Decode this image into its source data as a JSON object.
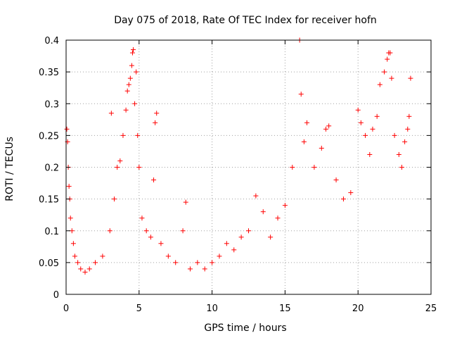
{
  "chart_data": {
    "type": "scatter",
    "title": "Day 075 of 2018, Rate Of TEC Index for receiver hofn",
    "xlabel": "GPS time / hours",
    "ylabel": "ROTI / TECUs",
    "xlim": [
      0,
      25
    ],
    "ylim": [
      0,
      0.4
    ],
    "xticks": [
      0,
      5,
      10,
      15,
      20,
      25
    ],
    "xtick_labels": [
      "0",
      "5",
      "10",
      "15",
      "20",
      "25"
    ],
    "yticks": [
      0,
      0.05,
      0.1,
      0.15,
      0.2,
      0.25,
      0.3,
      0.35,
      0.4
    ],
    "ytick_labels": [
      "0",
      "0.05",
      "0.1",
      "0.15",
      "0.2",
      "0.25",
      "0.3",
      "0.35",
      "0.4"
    ],
    "grid": true,
    "marker": "+",
    "color": "#ff0000",
    "series": [
      {
        "name": "ROTI",
        "x": [
          0.05,
          0.1,
          0.15,
          0.2,
          0.25,
          0.3,
          0.4,
          0.5,
          0.6,
          0.8,
          1.0,
          1.3,
          1.6,
          2.0,
          2.5,
          3.0,
          3.1,
          3.3,
          3.5,
          3.7,
          3.9,
          4.1,
          4.2,
          4.3,
          4.4,
          4.5,
          4.55,
          4.6,
          4.7,
          4.8,
          4.9,
          5.0,
          5.2,
          5.5,
          5.8,
          6.0,
          6.1,
          6.2,
          6.5,
          7.0,
          7.5,
          8.0,
          8.2,
          8.5,
          9.0,
          9.5,
          10.0,
          10.5,
          11.0,
          11.5,
          12.0,
          12.5,
          13.0,
          13.5,
          14.0,
          14.5,
          15.0,
          15.5,
          16.0,
          16.1,
          16.3,
          16.5,
          17.0,
          17.5,
          17.8,
          18.0,
          18.5,
          19.0,
          19.5,
          20.0,
          20.2,
          20.5,
          20.8,
          21.0,
          21.3,
          21.5,
          21.8,
          22.0,
          22.1,
          22.2,
          22.3,
          22.5,
          22.8,
          23.0,
          23.2,
          23.4,
          23.5,
          23.6
        ],
        "y": [
          0.26,
          0.24,
          0.2,
          0.17,
          0.15,
          0.12,
          0.1,
          0.08,
          0.06,
          0.05,
          0.04,
          0.035,
          0.04,
          0.05,
          0.06,
          0.1,
          0.285,
          0.15,
          0.2,
          0.21,
          0.25,
          0.29,
          0.32,
          0.33,
          0.34,
          0.36,
          0.38,
          0.385,
          0.3,
          0.35,
          0.25,
          0.2,
          0.12,
          0.1,
          0.09,
          0.18,
          0.27,
          0.285,
          0.08,
          0.06,
          0.05,
          0.1,
          0.145,
          0.04,
          0.05,
          0.04,
          0.05,
          0.06,
          0.08,
          0.07,
          0.09,
          0.1,
          0.155,
          0.13,
          0.09,
          0.12,
          0.14,
          0.2,
          0.4,
          0.315,
          0.24,
          0.27,
          0.2,
          0.23,
          0.26,
          0.265,
          0.18,
          0.15,
          0.16,
          0.29,
          0.27,
          0.25,
          0.22,
          0.26,
          0.28,
          0.33,
          0.35,
          0.37,
          0.38,
          0.38,
          0.34,
          0.25,
          0.22,
          0.2,
          0.24,
          0.26,
          0.28,
          0.34
        ]
      }
    ]
  }
}
